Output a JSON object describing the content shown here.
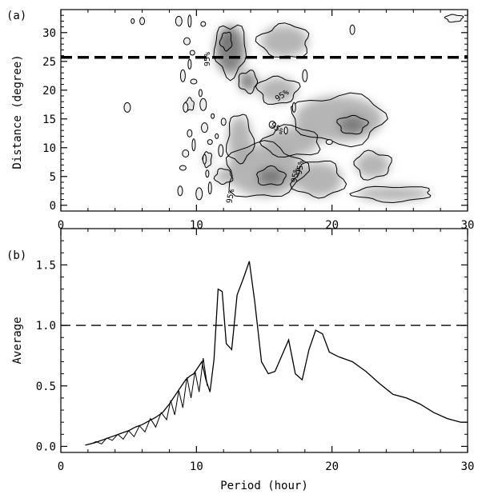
{
  "chart_data": [
    {
      "panel": "(a)",
      "type": "heatmap",
      "title": "",
      "xlabel": "",
      "ylabel": "Distance (degree)",
      "xlim": [
        0,
        30
      ],
      "ylim": [
        -1,
        34
      ],
      "xticks": [
        "0",
        "10",
        "20",
        "30"
      ],
      "yticks": [
        "0",
        "5",
        "10",
        "15",
        "20",
        "25",
        "30"
      ],
      "xtick_values": [
        0,
        10,
        20,
        30
      ],
      "ytick_values": [
        0,
        5,
        10,
        15,
        20,
        25,
        30
      ],
      "reference_line": {
        "y": 25.7,
        "style": "dashed"
      },
      "significance_label": "95%",
      "contour_label_count": 6,
      "colormap": [
        "#ffffff",
        "#d9d9d9",
        "#a8a8a8",
        "#6e6e6e"
      ],
      "regions": [
        {
          "x": 12.5,
          "y": 27.0,
          "w": 2.2,
          "h": 8.5,
          "level": 0.9
        },
        {
          "x": 12.2,
          "y": 28.5,
          "w": 0.8,
          "h": 3.0,
          "level": 1.0
        },
        {
          "x": 13.8,
          "y": 21.5,
          "w": 1.3,
          "h": 3.5,
          "level": 0.8
        },
        {
          "x": 13.2,
          "y": 11.5,
          "w": 1.8,
          "h": 8.0,
          "level": 0.5
        },
        {
          "x": 16.5,
          "y": 28.5,
          "w": 3.5,
          "h": 5.5,
          "level": 0.35
        },
        {
          "x": 16.0,
          "y": 20.0,
          "w": 2.8,
          "h": 4.5,
          "level": 0.35
        },
        {
          "x": 20.5,
          "y": 15.0,
          "w": 6.5,
          "h": 8.0,
          "level": 0.55
        },
        {
          "x": 21.5,
          "y": 14.0,
          "w": 2.0,
          "h": 3.0,
          "level": 0.8
        },
        {
          "x": 17.0,
          "y": 11.0,
          "w": 4.0,
          "h": 5.0,
          "level": 0.45
        },
        {
          "x": 15.0,
          "y": 6.0,
          "w": 5.5,
          "h": 9.0,
          "level": 0.6
        },
        {
          "x": 15.5,
          "y": 5.0,
          "w": 2.0,
          "h": 3.0,
          "level": 0.85
        },
        {
          "x": 19.0,
          "y": 4.5,
          "w": 3.5,
          "h": 6.0,
          "level": 0.5
        },
        {
          "x": 23.0,
          "y": 7.0,
          "w": 2.5,
          "h": 4.5,
          "level": 0.45
        },
        {
          "x": 24.5,
          "y": 2.0,
          "w": 5.5,
          "h": 2.5,
          "level": 0.4
        },
        {
          "x": 10.8,
          "y": 8.0,
          "w": 0.6,
          "h": 2.5,
          "level": 0.4
        },
        {
          "x": 12.0,
          "y": 5.0,
          "w": 1.2,
          "h": 2.5,
          "level": 0.4
        },
        {
          "x": 9.5,
          "y": 17.5,
          "w": 0.6,
          "h": 2.0,
          "level": 0.35
        },
        {
          "x": 29.0,
          "y": 32.5,
          "w": 1.2,
          "h": 1.2,
          "level": 0.2
        }
      ],
      "speckles": [
        {
          "x": 5.3,
          "y": 32.0
        },
        {
          "x": 6.0,
          "y": 32.0
        },
        {
          "x": 8.7,
          "y": 32.0
        },
        {
          "x": 9.5,
          "y": 32.0
        },
        {
          "x": 10.5,
          "y": 31.5
        },
        {
          "x": 9.3,
          "y": 28.5
        },
        {
          "x": 9.5,
          "y": 24.5
        },
        {
          "x": 9.0,
          "y": 22.5
        },
        {
          "x": 9.8,
          "y": 21.5
        },
        {
          "x": 10.3,
          "y": 19.5
        },
        {
          "x": 9.2,
          "y": 17.0
        },
        {
          "x": 10.5,
          "y": 17.5
        },
        {
          "x": 11.2,
          "y": 15.5
        },
        {
          "x": 9.5,
          "y": 12.5
        },
        {
          "x": 10.6,
          "y": 13.5
        },
        {
          "x": 9.8,
          "y": 10.5
        },
        {
          "x": 11.0,
          "y": 11.0
        },
        {
          "x": 9.2,
          "y": 9.0
        },
        {
          "x": 10.6,
          "y": 8.0
        },
        {
          "x": 11.8,
          "y": 9.5
        },
        {
          "x": 9.0,
          "y": 6.5
        },
        {
          "x": 10.8,
          "y": 5.5
        },
        {
          "x": 8.8,
          "y": 2.5
        },
        {
          "x": 10.2,
          "y": 2.0
        },
        {
          "x": 11.5,
          "y": 12.0
        },
        {
          "x": 12.0,
          "y": 14.5
        },
        {
          "x": 4.9,
          "y": 17.0
        },
        {
          "x": 11.0,
          "y": 3.0
        },
        {
          "x": 9.7,
          "y": 26.5
        },
        {
          "x": 15.6,
          "y": 14.0
        },
        {
          "x": 17.2,
          "y": 17.0
        },
        {
          "x": 18.0,
          "y": 22.5
        },
        {
          "x": 19.8,
          "y": 11.0
        },
        {
          "x": 16.6,
          "y": 13.0
        },
        {
          "x": 21.5,
          "y": 30.5
        }
      ]
    },
    {
      "panel": "(b)",
      "type": "line",
      "title": "",
      "xlabel": "Period (hour)",
      "ylabel": "Average",
      "xlim": [
        0,
        30
      ],
      "ylim": [
        -0.05,
        1.8
      ],
      "xticks": [
        "0",
        "10",
        "20",
        "30"
      ],
      "yticks": [
        "0.0",
        "0.5",
        "1.0",
        "1.5"
      ],
      "xtick_values": [
        0,
        10,
        20,
        30
      ],
      "ytick_values": [
        0.0,
        0.5,
        1.0,
        1.5
      ],
      "reference_line": {
        "y": 1.0,
        "style": "dashed"
      },
      "x": [
        1.8,
        2.5,
        3.0,
        3.5,
        4.0,
        4.5,
        5.0,
        5.5,
        6.0,
        6.5,
        7.0,
        7.5,
        8.0,
        8.3,
        8.6,
        8.9,
        9.2,
        9.5,
        9.8,
        10.1,
        10.4,
        10.7,
        11.0,
        11.3,
        11.6,
        11.9,
        12.2,
        12.6,
        13.0,
        13.5,
        13.9,
        14.3,
        14.8,
        15.3,
        15.8,
        16.3,
        16.8,
        17.3,
        17.8,
        18.3,
        18.8,
        19.3,
        19.8,
        20.5,
        21.5,
        22.5,
        23.5,
        24.5,
        25.5,
        26.5,
        27.5,
        28.5,
        29.5,
        30.0
      ],
      "y": [
        0.01,
        0.03,
        0.05,
        0.07,
        0.09,
        0.11,
        0.13,
        0.16,
        0.18,
        0.21,
        0.24,
        0.28,
        0.35,
        0.4,
        0.45,
        0.5,
        0.55,
        0.58,
        0.6,
        0.65,
        0.7,
        0.55,
        0.45,
        0.72,
        1.3,
        1.28,
        0.85,
        0.8,
        1.25,
        1.4,
        1.53,
        1.2,
        0.7,
        0.6,
        0.62,
        0.75,
        0.88,
        0.6,
        0.55,
        0.8,
        0.96,
        0.93,
        0.78,
        0.74,
        0.7,
        0.62,
        0.52,
        0.43,
        0.4,
        0.35,
        0.28,
        0.23,
        0.2,
        0.2
      ],
      "noise": {
        "x": [
          2.2,
          2.6,
          3.0,
          3.4,
          3.8,
          4.2,
          4.6,
          5.0,
          5.4,
          5.8,
          6.2,
          6.6,
          7.0,
          7.4,
          7.8,
          8.1,
          8.4,
          8.7,
          9.0,
          9.3,
          9.6,
          9.9,
          10.2,
          10.5,
          10.8
        ],
        "y": [
          0.02,
          0.04,
          0.02,
          0.07,
          0.05,
          0.1,
          0.06,
          0.13,
          0.08,
          0.17,
          0.12,
          0.23,
          0.16,
          0.28,
          0.22,
          0.38,
          0.26,
          0.46,
          0.32,
          0.57,
          0.4,
          0.62,
          0.45,
          0.73,
          0.5
        ]
      }
    }
  ]
}
